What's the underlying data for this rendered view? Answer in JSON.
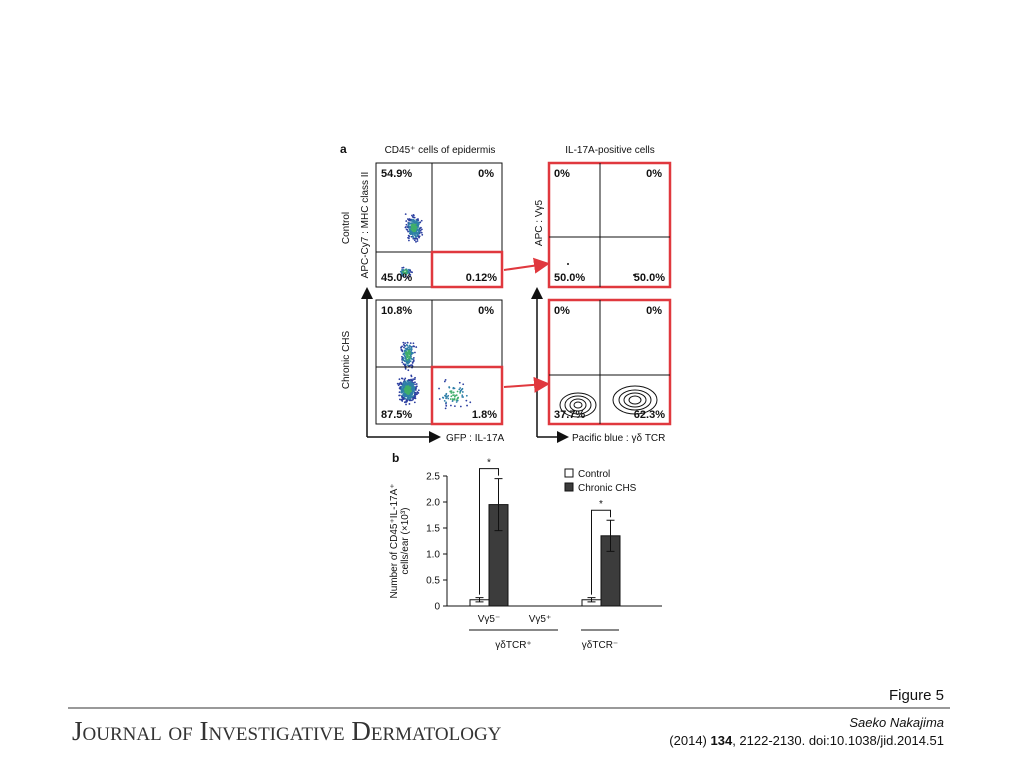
{
  "panel_a": {
    "label": "a",
    "left_title": "CD45⁺ cells of epidermis",
    "right_title": "IL-17A-positive cells",
    "left_xlabel": "GFP : IL-17A",
    "right_xlabel": "Pacific blue : γδ TCR",
    "rows": [
      {
        "label": "Control",
        "left": {
          "ylabel": "APC-Cy7 : MHC class II",
          "quadrants": [
            "54.9%",
            "0%",
            "45.0%",
            "0.12%"
          ]
        },
        "right": {
          "ylabel": "APC : Vγ5",
          "quadrants": [
            "0%",
            "0%",
            "50.0%",
            "50.0%"
          ]
        }
      },
      {
        "label": "Chronic CHS",
        "left": {
          "quadrants": [
            "10.8%",
            "0%",
            "87.5%",
            "1.8%"
          ]
        },
        "right": {
          "quadrants": [
            "0%",
            "0%",
            "37.7%",
            "62.3%"
          ]
        }
      }
    ]
  },
  "chart_data": {
    "type": "bar",
    "label": "b",
    "ylabel": [
      "Number of CD45⁺IL-17A⁺",
      "cells/ear (×10³)"
    ],
    "categories": [
      "Vγ5⁻",
      "Vγ5⁺",
      null
    ],
    "groups": [
      {
        "label": "γδTCR⁺",
        "categories": [
          0,
          1
        ]
      },
      {
        "label": "γδTCR⁻",
        "categories": [
          2
        ]
      }
    ],
    "significance": [
      "*",
      null,
      "*"
    ],
    "series": [
      {
        "name": "Control",
        "color": "#ffffff",
        "values": [
          0.12,
          null,
          0.12
        ],
        "errors": [
          0.04,
          null,
          0.04
        ]
      },
      {
        "name": "Chronic CHS",
        "color": "#3c3c3c",
        "values": [
          1.95,
          null,
          1.35
        ],
        "errors": [
          0.5,
          null,
          0.3
        ]
      }
    ],
    "ylim": [
      0,
      2.5
    ],
    "yticks": [
      0,
      0.5,
      {
        "value": 1,
        "label": "1.0"
      },
      1.5,
      {
        "value": 2,
        "label": "2.0"
      },
      2.5
    ]
  },
  "footer": {
    "figure": "Figure 5",
    "journal": "Journal of Investigative Dermatology",
    "author": "Saeko Nakajima",
    "year": "(2014) ",
    "volume": "134",
    "citation": ", 2122-2130. doi:10.1038/jid.2014.51"
  }
}
